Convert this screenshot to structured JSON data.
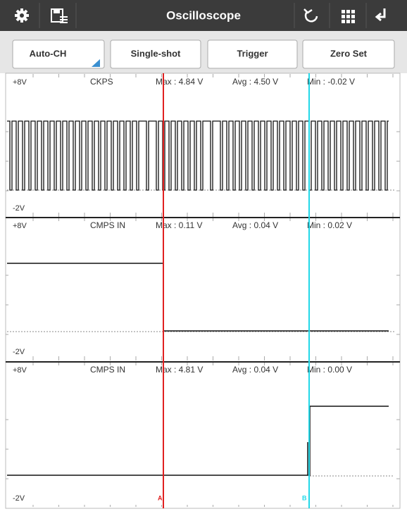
{
  "header": {
    "title": "Oscilloscope"
  },
  "buttons": [
    "Auto-CH",
    "Single-shot",
    "Trigger",
    "Zero Set"
  ],
  "panels": [
    {
      "top_label": "+8V",
      "bottom_label": "-2V",
      "name": "CKPS",
      "max": "Max : 4.84 V",
      "avg": "Avg : 4.50 V",
      "min": "Min : -0.02 V"
    },
    {
      "top_label": "+8V",
      "bottom_label": "-2V",
      "name": "CMPS IN",
      "max": "Max : 0.11 V",
      "avg": "Avg : 0.04 V",
      "min": "Min : 0.02 V"
    },
    {
      "top_label": "+8V",
      "bottom_label": "-2V",
      "name": "CMPS IN",
      "max": "Max : 4.81 V",
      "avg": "Avg : 0.04 V",
      "min": "Min : 0.00 V"
    }
  ],
  "cursors": {
    "a": "A",
    "b": "B"
  }
}
